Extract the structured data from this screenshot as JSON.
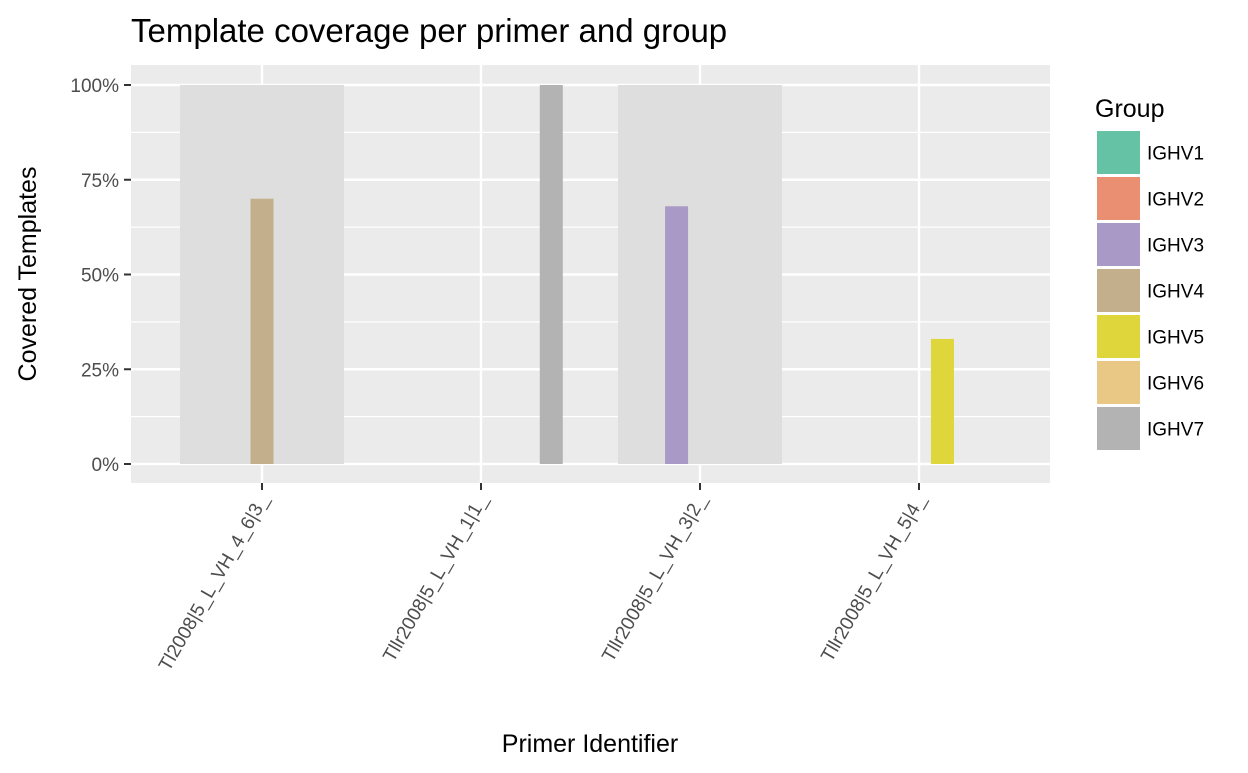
{
  "chart_data": {
    "type": "bar",
    "title": "Template coverage per primer and group",
    "xlabel": "Primer Identifier",
    "ylabel": "Covered Templates",
    "ylim": [
      0,
      1
    ],
    "y_ticks": [
      {
        "value": 0,
        "label": "0%"
      },
      {
        "value": 0.25,
        "label": "25%"
      },
      {
        "value": 0.5,
        "label": "50%"
      },
      {
        "value": 0.75,
        "label": "75%"
      },
      {
        "value": 1,
        "label": "100%"
      }
    ],
    "categories": [
      "Tl2008|5_L_VH_4_6|3_",
      "Tllr2008|5_L_VH_1|1_",
      "Tllr2008|5_L_VH_3|2_",
      "Tllr2008|5_L_VH_5|4_"
    ],
    "group_order": [
      "IGHV1",
      "IGHV2",
      "IGHV3",
      "IGHV4",
      "IGHV5",
      "IGHV6",
      "IGHV7"
    ],
    "bars": [
      {
        "category": "Tl2008|5_L_VH_4_6|3_",
        "group": "IGHV4",
        "value": 0.7
      },
      {
        "category": "Tllr2008|5_L_VH_1|1_",
        "group": "IGHV7",
        "value": 1.0
      },
      {
        "category": "Tllr2008|5_L_VH_3|2_",
        "group": "IGHV3",
        "value": 0.68
      },
      {
        "category": "Tllr2008|5_L_VH_5|4_",
        "group": "IGHV5",
        "value": 0.33
      }
    ],
    "background_bands": [
      {
        "category": "Tl2008|5_L_VH_4_6|3_",
        "value": 1.0
      },
      {
        "category": "Tllr2008|5_L_VH_3|2_",
        "value": 1.0
      }
    ],
    "legend": {
      "title": "Group",
      "position": "right",
      "entries": [
        {
          "label": "IGHV1",
          "color": "#66C2A5"
        },
        {
          "label": "IGHV2",
          "color": "#EB8F73"
        },
        {
          "label": "IGHV3",
          "color": "#A999C6"
        },
        {
          "label": "IGHV4",
          "color": "#C3AF8B"
        },
        {
          "label": "IGHV5",
          "color": "#DFD63B"
        },
        {
          "label": "IGHV6",
          "color": "#E9C784"
        },
        {
          "label": "IGHV7",
          "color": "#B3B3B3"
        }
      ]
    },
    "grid": true,
    "panel_background": "#EBEBEB",
    "band_color": "#DEDEDE"
  }
}
